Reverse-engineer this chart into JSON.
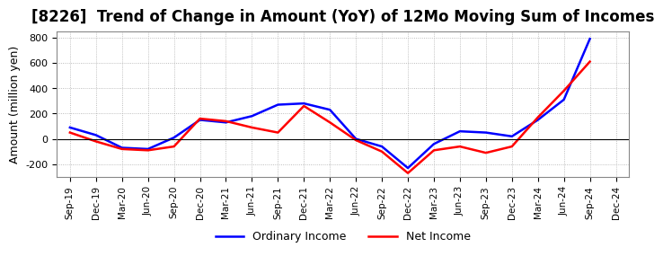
{
  "title": "[8226]  Trend of Change in Amount (YoY) of 12Mo Moving Sum of Incomes",
  "ylabel": "Amount (million yen)",
  "ylim": [
    -300,
    850
  ],
  "yticks": [
    -200,
    0,
    200,
    400,
    600,
    800
  ],
  "x_labels": [
    "Sep-19",
    "Dec-19",
    "Mar-20",
    "Jun-20",
    "Sep-20",
    "Dec-20",
    "Mar-21",
    "Jun-21",
    "Sep-21",
    "Dec-21",
    "Mar-22",
    "Jun-22",
    "Sep-22",
    "Dec-22",
    "Mar-23",
    "Jun-23",
    "Sep-23",
    "Dec-23",
    "Mar-24",
    "Jun-24",
    "Sep-24",
    "Dec-24"
  ],
  "ordinary_income": [
    90,
    30,
    -70,
    -80,
    10,
    150,
    130,
    180,
    270,
    280,
    230,
    0,
    -60,
    -230,
    -40,
    60,
    50,
    20,
    150,
    310,
    790,
    null
  ],
  "net_income": [
    50,
    -20,
    -80,
    -90,
    -60,
    160,
    140,
    90,
    50,
    260,
    130,
    -10,
    -100,
    -270,
    -90,
    -60,
    -110,
    -60,
    170,
    380,
    610,
    null
  ],
  "ordinary_color": "#0000ff",
  "net_color": "#ff0000",
  "background_color": "#ffffff",
  "grid_color": "#aaaaaa",
  "title_fontsize": 12,
  "legend_labels": [
    "Ordinary Income",
    "Net Income"
  ]
}
